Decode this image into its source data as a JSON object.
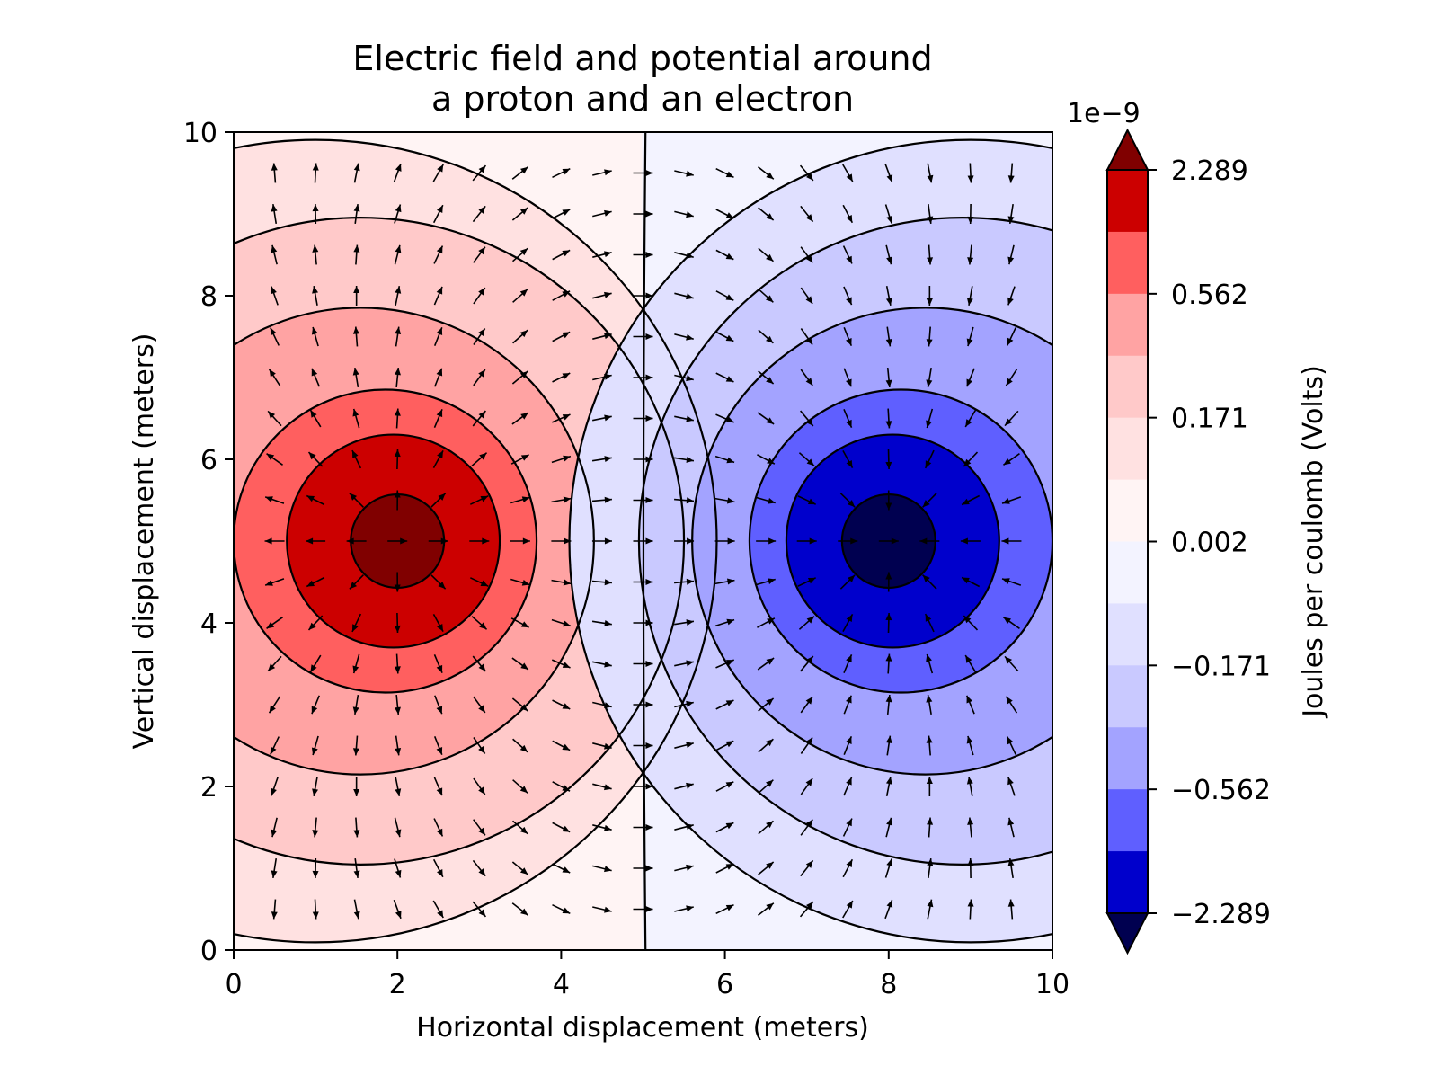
{
  "chart_data": {
    "type": "contour",
    "title_line1": "Electric field and potential around",
    "title_line2": "a proton and an electron",
    "xlabel": "Horizontal displacement (meters)",
    "ylabel": "Vertical displacement (meters)",
    "xlim": [
      0,
      10
    ],
    "ylim": [
      0,
      10
    ],
    "xticks": [
      0,
      2,
      4,
      6,
      8,
      10
    ],
    "yticks": [
      0,
      2,
      4,
      6,
      8,
      10
    ],
    "xtick_labels": [
      "0",
      "2",
      "4",
      "6",
      "8",
      "10"
    ],
    "ytick_labels": [
      "0",
      "2",
      "4",
      "6",
      "8",
      "10"
    ],
    "charges": [
      {
        "x": 2,
        "y": 5,
        "sign": 1
      },
      {
        "x": 8,
        "y": 5,
        "sign": -1
      }
    ],
    "colorbar": {
      "label": "Joules per coulomb (Volts)",
      "offset_text": "1e−9",
      "tick_labels": [
        "2.289",
        "0.562",
        "0.171",
        "0.002",
        "−0.171",
        "−0.562",
        "−2.289"
      ],
      "band_colors": [
        "#cc0000",
        "#ff5f5f",
        "#ffa3a3",
        "#ffc9c9",
        "#ffe1e1",
        "#fff4f4",
        "#f3f3ff",
        "#e0e0ff",
        "#c9c9ff",
        "#a3a3ff",
        "#5f5fff",
        "#0000cc"
      ],
      "extend_top_color": "#800000",
      "extend_bottom_color": "#000050"
    },
    "grid": false,
    "quiver": true
  }
}
